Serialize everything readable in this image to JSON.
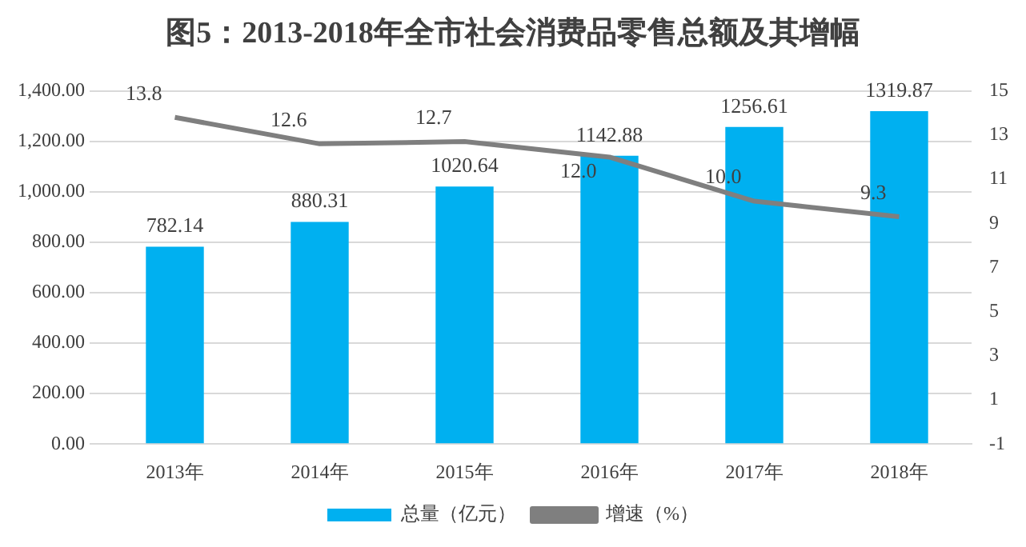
{
  "chart_data": {
    "type": "bar",
    "title": "图5：2013-2018年全市社会消费品零售总额及其增幅",
    "categories": [
      "2013年",
      "2014年",
      "2015年",
      "2016年",
      "2017年",
      "2018年"
    ],
    "series": [
      {
        "name": "总量（亿元）",
        "type": "bar",
        "color": "#00b0f0",
        "values": [
          782.14,
          880.31,
          1020.64,
          1142.88,
          1256.61,
          1319.87
        ],
        "value_labels": [
          "782.14",
          "880.31",
          "1020.64",
          "1142.88",
          "1256.61",
          "1319.87"
        ]
      },
      {
        "name": "增速（%）",
        "type": "line",
        "axis": "y2",
        "color": "#7f7f7f",
        "marker": "none",
        "values": [
          13.8,
          12.6,
          12.7,
          12.0,
          10.0,
          9.3
        ],
        "value_labels": [
          "13.8",
          "12.6",
          "12.7",
          "12.0",
          "10.0",
          "9.3"
        ]
      }
    ],
    "ylim": [
      0,
      1400
    ],
    "yticks": [
      {
        "value": 0,
        "label": "0.00"
      },
      {
        "value": 200,
        "label": "200.00"
      },
      {
        "value": 400,
        "label": "400.00"
      },
      {
        "value": 600,
        "label": "600.00"
      },
      {
        "value": 800,
        "label": "800.00"
      },
      {
        "value": 1000,
        "label": "1,000.00"
      },
      {
        "value": 1200,
        "label": "1,200.00"
      },
      {
        "value": 1400,
        "label": "1,400.00"
      }
    ],
    "y2lim": [
      -1,
      15
    ],
    "y2ticks": [
      -1,
      1,
      3,
      5,
      7,
      9,
      11,
      13,
      15
    ],
    "grid": "y",
    "legend": "bottom"
  }
}
